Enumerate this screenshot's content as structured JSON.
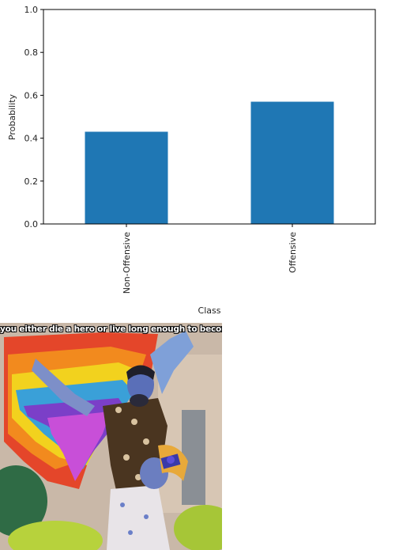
{
  "chart_data": {
    "type": "bar",
    "categories": [
      "Non-Offensive",
      "Offensive"
    ],
    "values": [
      0.43,
      0.57
    ],
    "xlabel": "Class",
    "ylabel": "Probability",
    "ylim": [
      0,
      1.0
    ],
    "yticks": [
      "0.0",
      "0.2",
      "0.4",
      "0.6",
      "0.8",
      "1.0"
    ],
    "grid": false,
    "bar_color": "#1f77b4"
  },
  "meme": {
    "caption": "you either die a hero or live long enough to become the villain"
  }
}
